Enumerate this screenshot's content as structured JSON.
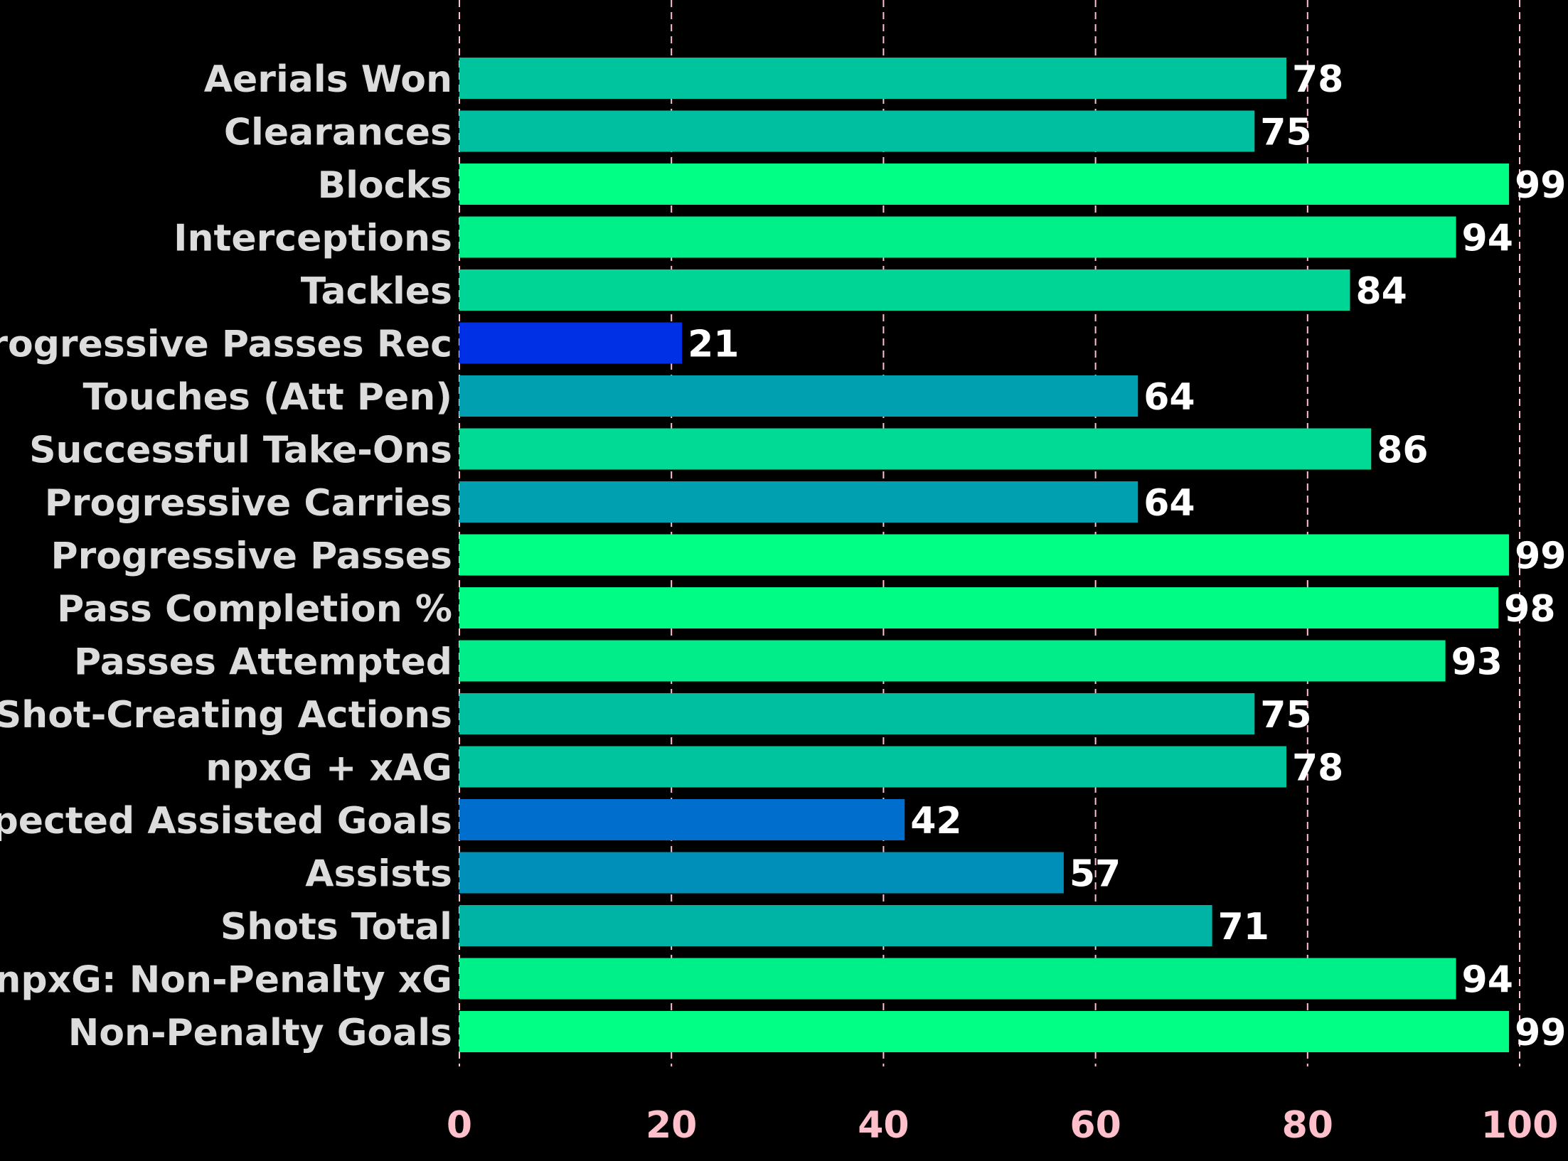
{
  "chart_data": {
    "type": "bar",
    "orientation": "horizontal",
    "categories": [
      "Aerials Won",
      "Clearances",
      "Blocks",
      "Interceptions",
      "Tackles",
      "Progressive Passes Rec",
      "Touches (Att Pen)",
      "Successful Take-Ons",
      "Progressive Carries",
      "Progressive Passes",
      "Pass Completion %",
      "Passes Attempted",
      "Shot-Creating Actions",
      "npxG + xAG",
      "xAG: Expected Assisted Goals",
      "Assists",
      "Shots Total",
      "npxG: Non-Penalty xG",
      "Non-Penalty Goals"
    ],
    "values": [
      78,
      75,
      99,
      94,
      84,
      21,
      64,
      86,
      64,
      99,
      98,
      93,
      75,
      78,
      42,
      57,
      71,
      94,
      99
    ],
    "bar_colors": [
      "#00c49d",
      "#00bea0",
      "#00ff84",
      "#00f089",
      "#00d596",
      "#0030e6",
      "#00a0b0",
      "#00da94",
      "#00a0b0",
      "#00ff84",
      "#00fc85",
      "#00ed8a",
      "#00bea0",
      "#00c49d",
      "#006ecc",
      "#008fb8",
      "#00b4a5",
      "#00f089",
      "#00ff84"
    ],
    "xlim": [
      0,
      100
    ],
    "xticks": [
      "0",
      "20",
      "40",
      "60",
      "80",
      "100"
    ],
    "grid": "vertical dashed",
    "grid_color": "#ffc0cb",
    "tick_color": "#ffc0cb",
    "label_color": "#dcdcdc",
    "value_label_color": "#ffffff",
    "background": "#000000"
  }
}
